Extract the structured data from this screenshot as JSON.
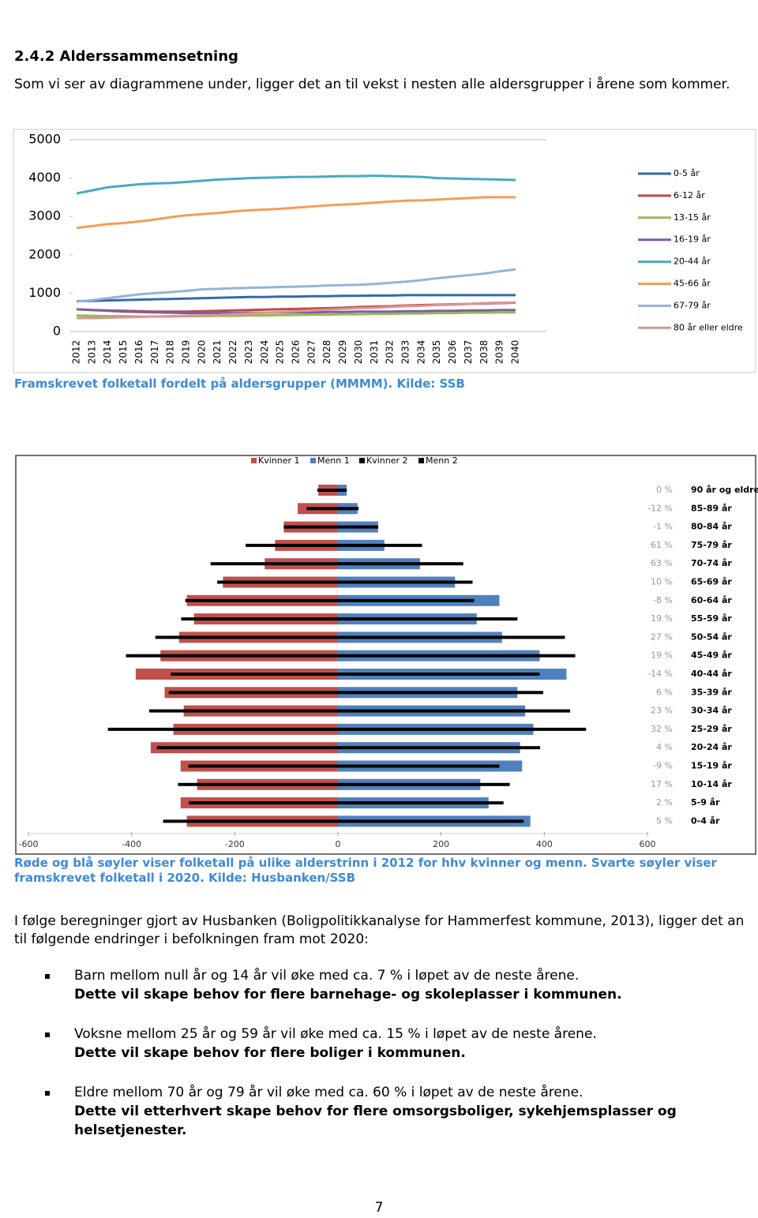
{
  "heading": "2.4.2 Alderssammensetning",
  "intro": "Som vi ser av diagrammene under, ligger det an til vekst i nesten alle aldersgrupper i årene som kommer.",
  "chart_data": [
    {
      "type": "line",
      "caption": "Framskrevet folketall fordelt på aldersgrupper (MMMM). Kilde: SSB",
      "categories": [
        "2012",
        "2013",
        "2014",
        "2015",
        "2016",
        "2017",
        "2018",
        "2019",
        "2020",
        "2021",
        "2022",
        "2023",
        "2024",
        "2025",
        "2026",
        "2027",
        "2028",
        "2029",
        "2030",
        "2031",
        "2032",
        "2033",
        "2034",
        "2035",
        "2036",
        "2037",
        "2038",
        "2039",
        "2040"
      ],
      "ylim": [
        0,
        5000
      ],
      "yticks": [
        0,
        1000,
        2000,
        3000,
        4000,
        5000
      ],
      "grid": false,
      "legend": "right",
      "series": [
        {
          "name": "0-5 år",
          "color": "#2f6bb0",
          "values": [
            790,
            800,
            810,
            820,
            830,
            840,
            850,
            860,
            870,
            880,
            890,
            900,
            900,
            910,
            910,
            920,
            920,
            930,
            930,
            940,
            940,
            950,
            950,
            950,
            950,
            950,
            950,
            950,
            950
          ]
        },
        {
          "name": "6-12 år",
          "color": "#be4b48",
          "values": [
            580,
            560,
            550,
            540,
            530,
            520,
            520,
            520,
            530,
            540,
            550,
            560,
            570,
            580,
            590,
            600,
            610,
            620,
            640,
            650,
            660,
            680,
            690,
            700,
            710,
            720,
            730,
            740,
            750
          ]
        },
        {
          "name": "13-15 år",
          "color": "#98b954",
          "values": [
            420,
            410,
            400,
            400,
            390,
            390,
            390,
            400,
            400,
            410,
            410,
            420,
            420,
            430,
            430,
            440,
            440,
            450,
            450,
            460,
            460,
            470,
            470,
            480,
            480,
            490,
            490,
            500,
            500
          ]
        },
        {
          "name": "16-19 år",
          "color": "#7d60a0",
          "values": [
            580,
            560,
            540,
            520,
            510,
            500,
            490,
            480,
            480,
            480,
            480,
            490,
            490,
            500,
            500,
            500,
            510,
            510,
            520,
            520,
            520,
            530,
            530,
            540,
            540,
            550,
            550,
            560,
            560
          ]
        },
        {
          "name": "20-44 år",
          "color": "#46aac5",
          "values": [
            3600,
            3680,
            3760,
            3800,
            3840,
            3860,
            3870,
            3900,
            3930,
            3960,
            3980,
            4000,
            4010,
            4020,
            4030,
            4030,
            4040,
            4050,
            4050,
            4060,
            4050,
            4040,
            4030,
            4000,
            3990,
            3980,
            3970,
            3960,
            3950
          ]
        },
        {
          "name": "45-66 år",
          "color": "#f59d56",
          "values": [
            2700,
            2750,
            2800,
            2830,
            2870,
            2920,
            2980,
            3030,
            3060,
            3090,
            3130,
            3160,
            3180,
            3200,
            3230,
            3260,
            3290,
            3310,
            3330,
            3360,
            3390,
            3410,
            3420,
            3440,
            3460,
            3480,
            3500,
            3500,
            3500
          ]
        },
        {
          "name": "67-79 år",
          "color": "#95b3d7",
          "values": [
            780,
            820,
            870,
            920,
            970,
            1000,
            1030,
            1060,
            1100,
            1110,
            1130,
            1140,
            1150,
            1160,
            1170,
            1180,
            1200,
            1210,
            1220,
            1240,
            1270,
            1300,
            1340,
            1390,
            1430,
            1470,
            1510,
            1570,
            1620
          ]
        },
        {
          "name": "80 år eller eldre",
          "color": "#d99694",
          "values": [
            350,
            350,
            360,
            370,
            380,
            390,
            400,
            410,
            420,
            430,
            450,
            470,
            490,
            510,
            530,
            550,
            570,
            590,
            610,
            620,
            640,
            660,
            670,
            690,
            700,
            720,
            740,
            750,
            760
          ]
        }
      ]
    },
    {
      "type": "bar",
      "orientation": "horizontal",
      "caption": "Røde og blå søyler viser folketall på ulike alderstrinn i 2012 for hhv kvinner og menn. Svarte søyler viser framskrevet folketall i 2020. Kilde: Husbanken/SSB",
      "categories": [
        "90 år og eldre",
        "85-89 år",
        "80-84 år",
        "75-79 år",
        "70-74 år",
        "65-69 år",
        "60-64 år",
        "55-59 år",
        "50-54 år",
        "45-49 år",
        "40-44 år",
        "35-39 år",
        "30-34 år",
        "25-29 år",
        "20-24 år",
        "15-19 år",
        "10-14 år",
        "5-9 år",
        "0-4 år"
      ],
      "change_labels": [
        "0 %",
        "-12 %",
        "-1 %",
        "61 %",
        "63 %",
        "10 %",
        "-8 %",
        "19 %",
        "27 %",
        "19 %",
        "-14 %",
        "6 %",
        "23 %",
        "32 %",
        "4 %",
        "-9 %",
        "17 %",
        "2 %",
        "5 %"
      ],
      "xlim": [
        -600,
        600
      ],
      "xticks": [
        -600,
        -400,
        -200,
        0,
        200,
        400,
        600
      ],
      "legend": "top",
      "series": [
        {
          "name": "Kvinner 1",
          "color": "#c0504d",
          "values": [
            -38,
            -78,
            -105,
            -122,
            -142,
            -223,
            -293,
            -279,
            -308,
            -344,
            -392,
            -336,
            -299,
            -319,
            -363,
            -305,
            -273,
            -305,
            -293
          ]
        },
        {
          "name": "Menn 1",
          "color": "#4f81bd",
          "values": [
            17,
            38,
            78,
            90,
            159,
            227,
            313,
            269,
            318,
            391,
            443,
            348,
            363,
            379,
            353,
            357,
            276,
            292,
            373
          ]
        },
        {
          "name": "Kvinner 2",
          "color": "#000000",
          "values": [
            -40,
            -61,
            -105,
            -179,
            -247,
            -234,
            -296,
            -304,
            -354,
            -411,
            -324,
            -328,
            -366,
            -446,
            -351,
            -290,
            -310,
            -289,
            -339
          ]
        },
        {
          "name": "Menn 2",
          "color": "#000000",
          "values": [
            17,
            40,
            78,
            163,
            243,
            261,
            264,
            348,
            440,
            460,
            391,
            398,
            450,
            481,
            392,
            313,
            333,
            321,
            360
          ]
        }
      ]
    }
  ],
  "body": {
    "paragraph": "I følge beregninger gjort av Husbanken (Boligpolitikkanalyse for Hammerfest kommune, 2013), ligger det an til følgende endringer i befolkningen fram mot 2020:",
    "bullets": [
      {
        "text": "Barn mellom null år og 14 år vil øke med ca. 7 % i løpet av de neste årene.",
        "emphasis": "Dette vil skape behov for flere barnehage- og skoleplasser i kommunen."
      },
      {
        "text": "Voksne mellom 25 år og 59 år vil øke med ca. 15 % i løpet av de neste årene.",
        "emphasis": "Dette vil skape behov for flere boliger i kommunen."
      },
      {
        "text": "Eldre mellom 70 år og 79 år vil øke med ca. 60 % i løpet av de neste årene.",
        "emphasis": "Dette vil etterhvert skape behov for flere omsorgsboliger, sykehjemsplasser og helsetjenester."
      }
    ]
  },
  "page_number": "7"
}
